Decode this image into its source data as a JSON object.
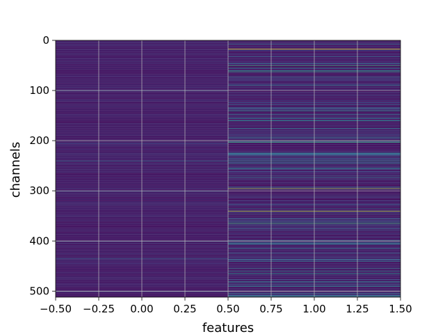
{
  "chart_data": {
    "type": "heatmap",
    "title": "",
    "xlabel": "features",
    "ylabel": "channels",
    "xlim": [
      -0.5,
      1.5
    ],
    "ylim": [
      512,
      0
    ],
    "y_inverted": true,
    "grid": true,
    "colormap": "viridis",
    "columns": [
      0,
      1
    ],
    "n_channels": 512,
    "x_ticks": [
      -0.5,
      -0.25,
      0.0,
      0.25,
      0.5,
      0.75,
      1.0,
      1.25,
      1.5
    ],
    "x_tick_labels": [
      "−0.50",
      "−0.25",
      "0.00",
      "0.25",
      "0.50",
      "0.75",
      "1.00",
      "1.25",
      "1.50"
    ],
    "y_ticks": [
      0,
      100,
      200,
      300,
      400,
      500
    ],
    "y_tick_labels": [
      "0",
      "100",
      "200",
      "300",
      "400",
      "500"
    ],
    "column_0_bright_channels": [
      {
        "channel": 100,
        "value": 0.25
      },
      {
        "channel": 205,
        "value": 0.25
      },
      {
        "channel": 240,
        "value": 0.35
      },
      {
        "channel": 300,
        "value": 0.25
      },
      {
        "channel": 400,
        "value": 0.25
      },
      {
        "channel": 435,
        "value": 0.3
      },
      {
        "channel": 500,
        "value": 0.25
      }
    ],
    "column_1_bright_channels": [
      {
        "channel": 17,
        "value": 0.95
      },
      {
        "channel": 50,
        "value": 0.6
      },
      {
        "channel": 55,
        "value": 0.45
      },
      {
        "channel": 60,
        "value": 0.5
      },
      {
        "channel": 62,
        "value": 0.55
      },
      {
        "channel": 140,
        "value": 0.5
      },
      {
        "channel": 155,
        "value": 0.45
      },
      {
        "channel": 160,
        "value": 0.5
      },
      {
        "channel": 200,
        "value": 0.55
      },
      {
        "channel": 203,
        "value": 0.6
      },
      {
        "channel": 240,
        "value": 0.5
      },
      {
        "channel": 245,
        "value": 0.45
      },
      {
        "channel": 255,
        "value": 0.45
      },
      {
        "channel": 295,
        "value": 0.85
      },
      {
        "channel": 340,
        "value": 0.9
      },
      {
        "channel": 362,
        "value": 0.5
      },
      {
        "channel": 365,
        "value": 0.6
      },
      {
        "channel": 405,
        "value": 0.45
      },
      {
        "channel": 415,
        "value": 0.4
      },
      {
        "channel": 440,
        "value": 0.4
      },
      {
        "channel": 460,
        "value": 0.45
      },
      {
        "channel": 465,
        "value": 0.5
      },
      {
        "channel": 490,
        "value": 0.45
      },
      {
        "channel": 510,
        "value": 0.55
      }
    ]
  }
}
